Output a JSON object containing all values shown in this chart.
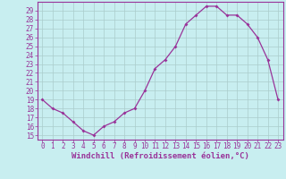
{
  "x": [
    0,
    1,
    2,
    3,
    4,
    5,
    6,
    7,
    8,
    9,
    10,
    11,
    12,
    13,
    14,
    15,
    16,
    17,
    18,
    19,
    20,
    21,
    22,
    23
  ],
  "y": [
    19,
    18,
    17.5,
    16.5,
    15.5,
    15,
    16,
    16.5,
    17.5,
    18,
    20,
    22.5,
    23.5,
    25,
    27.5,
    28.5,
    29.5,
    29.5,
    28.5,
    28.5,
    27.5,
    26,
    23.5,
    19
  ],
  "line_color": "#993399",
  "marker_color": "#993399",
  "bg_color": "#c8eef0",
  "grid_color": "#aacccc",
  "xlabel": "Windchill (Refroidissement éolien,°C)",
  "ylim": [
    14.5,
    30.0
  ],
  "xlim": [
    -0.5,
    23.5
  ],
  "yticks": [
    15,
    16,
    17,
    18,
    19,
    20,
    21,
    22,
    23,
    24,
    25,
    26,
    27,
    28,
    29
  ],
  "xticks": [
    0,
    1,
    2,
    3,
    4,
    5,
    6,
    7,
    8,
    9,
    10,
    11,
    12,
    13,
    14,
    15,
    16,
    17,
    18,
    19,
    20,
    21,
    22,
    23
  ],
  "xlabel_color": "#993399",
  "tick_color": "#993399",
  "axis_color": "#993399",
  "tick_fontsize": 5.5,
  "xlabel_fontsize": 6.5
}
